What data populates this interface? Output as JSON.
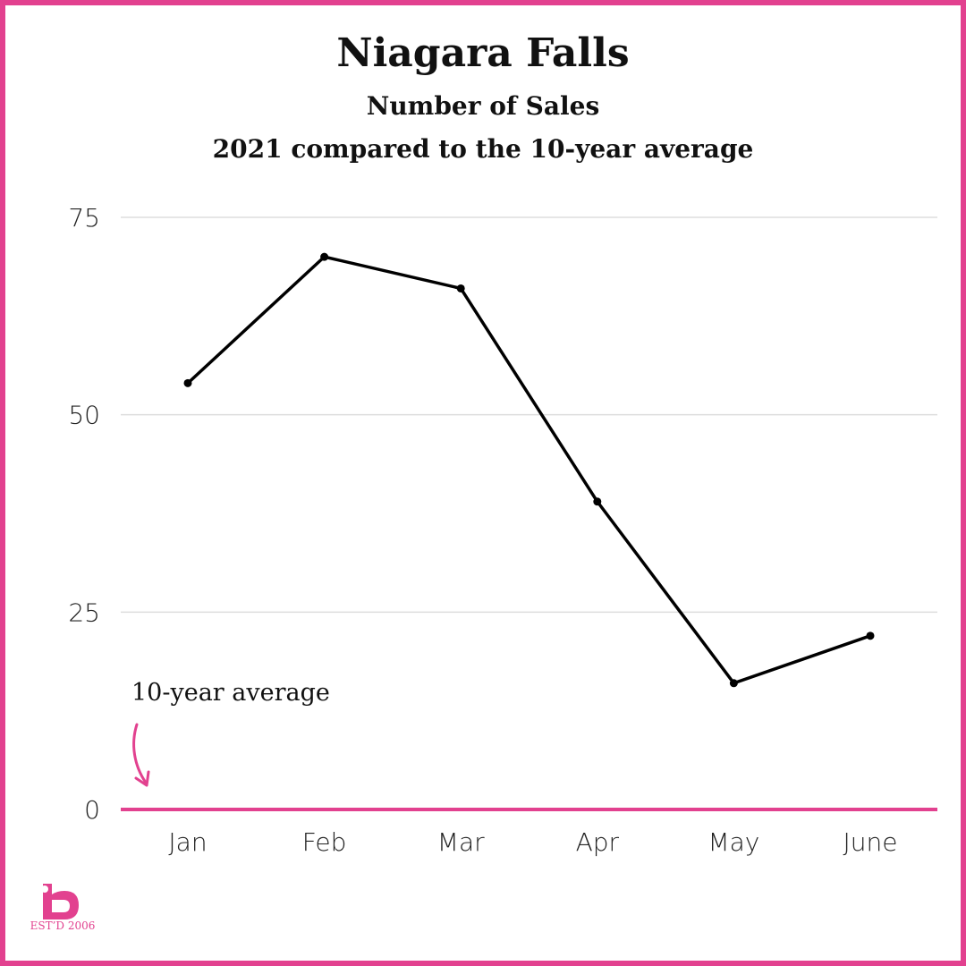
{
  "brand": {
    "accent_color": "#e2418f",
    "logo_icon": "b-logo-icon",
    "logo_text": "EST’D 2006"
  },
  "chart_data": {
    "type": "line",
    "title": "Niagara Falls",
    "subtitle": [
      "Number of Sales",
      "2021 compared to the 10-year average"
    ],
    "categories": [
      "Jan",
      "Feb",
      "Mar",
      "Apr",
      "May",
      "June"
    ],
    "series": [
      {
        "values": [
          54,
          70,
          66,
          39,
          16,
          22
        ],
        "color": "#000000"
      }
    ],
    "ylim": [
      0,
      75
    ],
    "yticks": [
      0,
      25,
      50,
      75
    ],
    "grid": true,
    "baseline": {
      "value": 0,
      "color": "#e2418f"
    },
    "annotation": {
      "text": "10-year average",
      "arrow_color": "#e2418f"
    },
    "xlabel": "",
    "ylabel": ""
  }
}
